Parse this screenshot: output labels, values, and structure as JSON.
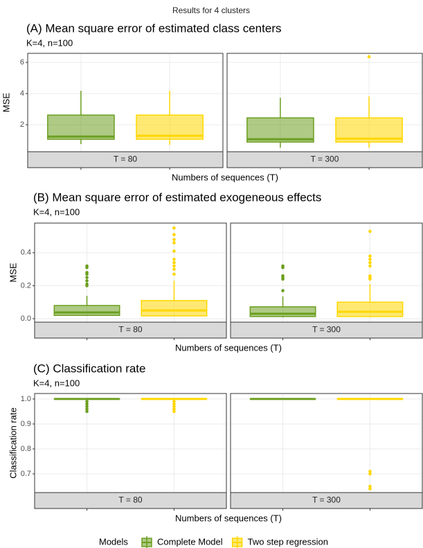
{
  "title": "Results for 4 clusters",
  "legend": {
    "title": "Models",
    "position": "bottom",
    "series": [
      {
        "name": "Complete Model",
        "color": "#6b9e1f"
      },
      {
        "name": "Two step regression",
        "color": "#ffd700"
      }
    ]
  },
  "chart_data": [
    {
      "type": "box",
      "title": "(A) Mean square error of estimated class centers",
      "subtitle": "K=4, n=100",
      "xlabel": "Numbers of sequences (T)",
      "ylabel": "MSE",
      "facets": [
        "T = 80",
        "T = 300"
      ],
      "ylim": [
        0.27,
        6.58
      ],
      "yticks": [
        2,
        4,
        6
      ],
      "grid": true,
      "series": [
        {
          "boxes": [
            {
              "min": 0.76,
              "q1": 1.07,
              "median": 1.24,
              "q3": 2.62,
              "max": 4.18,
              "outliers": []
            },
            {
              "min": 0.53,
              "q1": 0.89,
              "median": 1.07,
              "q3": 2.44,
              "max": 3.73,
              "outliers": []
            }
          ]
        },
        {
          "boxes": [
            {
              "min": 0.71,
              "q1": 1.07,
              "median": 1.29,
              "q3": 2.62,
              "max": 4.18,
              "outliers": []
            },
            {
              "min": 0.53,
              "q1": 0.89,
              "median": 1.11,
              "q3": 2.44,
              "max": 3.82,
              "outliers": [
                6.36
              ]
            }
          ]
        }
      ]
    },
    {
      "type": "box",
      "title": "(B) Mean square error of estimated exogeneous effects",
      "subtitle": "K=4, n=100",
      "xlabel": "Numbers of sequences (T)",
      "ylabel": "MSE",
      "facets": [
        "T = 80",
        "T = 300"
      ],
      "ylim": [
        -0.021,
        0.58
      ],
      "yticks": [
        {
          "value": 0,
          "label": "0.0"
        },
        0.2,
        0.4
      ],
      "grid": true,
      "series": [
        {
          "boxes": [
            {
              "min": 0.017,
              "q1": 0.02,
              "median": 0.038,
              "q3": 0.08,
              "max": 0.139,
              "outliers": [
                0.32,
                0.31,
                0.28,
                0.27,
                0.25,
                0.23,
                0.21,
                0.2
              ]
            },
            {
              "min": 0.008,
              "q1": 0.013,
              "median": 0.03,
              "q3": 0.072,
              "max": 0.135,
              "outliers": [
                0.32,
                0.31,
                0.26,
                0.25,
                0.24,
                0.17
              ]
            }
          ]
        },
        {
          "boxes": [
            {
              "min": 0.013,
              "q1": 0.017,
              "median": 0.05,
              "q3": 0.11,
              "max": 0.23,
              "outliers": [
                0.55,
                0.51,
                0.48,
                0.46,
                0.41,
                0.36,
                0.34,
                0.32,
                0.3,
                0.27
              ]
            },
            {
              "min": 0.008,
              "q1": 0.013,
              "median": 0.042,
              "q3": 0.1,
              "max": 0.21,
              "outliers": [
                0.53,
                0.38,
                0.36,
                0.34,
                0.32,
                0.26,
                0.25,
                0.24
              ]
            }
          ]
        }
      ]
    },
    {
      "type": "box",
      "title": "(C) Classification rate",
      "subtitle": "K=4, n=100",
      "xlabel": "Numbers of sequences (T)",
      "ylabel": "Classification rate",
      "facets": [
        "T = 80",
        "T = 300"
      ],
      "ylim": [
        0.625,
        1.022
      ],
      "yticks": [
        0.7,
        0.8,
        0.9,
        {
          "value": 1,
          "label": "1.0"
        }
      ],
      "grid": true,
      "series": [
        {
          "boxes": [
            {
              "min": 1,
              "q1": 1,
              "median": 1,
              "q3": 1,
              "max": 1,
              "outliers": [
                0.99,
                0.98,
                0.97,
                0.96,
                0.95
              ]
            },
            {
              "min": 1,
              "q1": 1,
              "median": 1,
              "q3": 1,
              "max": 1,
              "outliers": []
            }
          ]
        },
        {
          "boxes": [
            {
              "min": 1,
              "q1": 1,
              "median": 1,
              "q3": 1,
              "max": 1,
              "outliers": [
                0.99,
                0.98,
                0.97,
                0.96,
                0.95
              ]
            },
            {
              "min": 1,
              "q1": 1,
              "median": 1,
              "q3": 1,
              "max": 1,
              "outliers": [
                0.71,
                0.7,
                0.65,
                0.64
              ]
            }
          ]
        }
      ]
    }
  ]
}
